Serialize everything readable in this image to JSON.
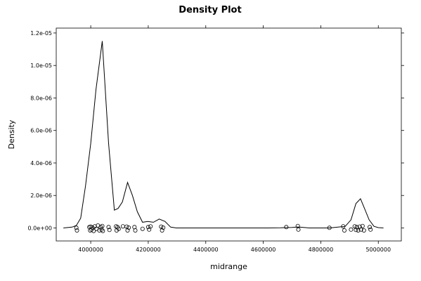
{
  "chart_data": {
    "type": "line",
    "title": "Density Plot",
    "xlabel": "midrange",
    "ylabel": "Density",
    "xlim": [
      3880000,
      5080000
    ],
    "ylim": [
      -8e-07,
      1.23e-05
    ],
    "x_ticks": [
      4000000,
      4200000,
      4400000,
      4600000,
      4800000,
      5000000
    ],
    "x_tick_labels": [
      "4000000",
      "4200000",
      "4400000",
      "4600000",
      "4800000",
      "5000000"
    ],
    "y_ticks": [
      0,
      2e-06,
      4e-06,
      6e-06,
      8e-06,
      1e-05,
      1.2e-05
    ],
    "y_tick_labels": [
      "0.0e+00",
      "2.0e-06",
      "4.0e-06",
      "6.0e-06",
      "8.0e-06",
      "1.0e-05",
      "1.2e-05"
    ],
    "grid": false,
    "legend": "none",
    "density": {
      "x": [
        3905000,
        3935000,
        3950000,
        3965000,
        3982000,
        4000000,
        4018000,
        4040000,
        4062000,
        4082000,
        4095000,
        4110000,
        4128000,
        4145000,
        4162000,
        4180000,
        4198000,
        4218000,
        4238000,
        4258000,
        4278000,
        4298000,
        4320000,
        4345000,
        4400000,
        4500000,
        4600000,
        4660000,
        4700000,
        4720000,
        4740000,
        4760000,
        4790000,
        4830000,
        4860000,
        4885000,
        4905000,
        4922000,
        4938000,
        4952000,
        4968000,
        4985000,
        5000000,
        5018000
      ],
      "y": [
        0,
        5e-08,
        1.5e-07,
        6e-07,
        2.6e-06,
        5.2e-06,
        8.5e-06,
        1.15e-05,
        5.2e-06,
        1.1e-06,
        1.2e-06,
        1.6e-06,
        2.8e-06,
        2e-06,
        1e-06,
        3.5e-07,
        4e-07,
        3.5e-07,
        5.5e-07,
        4e-07,
        5e-08,
        0,
        0,
        0,
        0,
        0,
        0,
        1e-08,
        3e-08,
        6e-08,
        3e-08,
        0,
        0,
        0,
        5e-08,
        1e-07,
        5e-07,
        1.5e-06,
        1.8e-06,
        1.2e-06,
        5e-07,
        1e-07,
        2e-08,
        0
      ]
    },
    "rug": {
      "x": [
        3950000,
        3952000,
        3995000,
        3998000,
        4000000,
        4003000,
        4006000,
        4010000,
        4014000,
        4020000,
        4025000,
        4030000,
        4035000,
        4038000,
        4040000,
        4042000,
        4062000,
        4065000,
        4088000,
        4090000,
        4093000,
        4097000,
        4112000,
        4125000,
        4128000,
        4132000,
        4152000,
        4155000,
        4180000,
        4200000,
        4203000,
        4208000,
        4245000,
        4248000,
        4252000,
        4680000,
        4720000,
        4722000,
        4830000,
        4878000,
        4882000,
        4905000,
        4918000,
        4922000,
        4925000,
        4930000,
        4935000,
        4940000,
        4945000,
        4950000,
        4970000,
        4973000
      ],
      "y": [
        1e-08,
        -1.5e-07,
        5e-08,
        -1.5e-07,
        8e-08,
        -1e-07,
        2e-08,
        -1.8e-07,
        1e-07,
        -5e-08,
        1.5e-07,
        -1.5e-07,
        5e-08,
        -1e-07,
        1.2e-07,
        -1.8e-07,
        5e-08,
        -1.2e-07,
        1e-07,
        -1.5e-07,
        5e-08,
        -5e-08,
        1e-07,
        8e-08,
        -1.5e-07,
        2e-08,
        5e-08,
        -1.5e-07,
        -5e-08,
        5e-08,
        -1e-07,
        1e-07,
        8e-08,
        -1.5e-07,
        2e-08,
        5e-08,
        1.2e-07,
        -1e-07,
        1e-08,
        1e-07,
        -1.5e-07,
        -1e-07,
        1e-07,
        -1.2e-07,
        5e-08,
        -1.5e-07,
        8e-08,
        -1e-07,
        1.2e-07,
        -1.5e-07,
        5e-08,
        -1e-07
      ]
    }
  }
}
